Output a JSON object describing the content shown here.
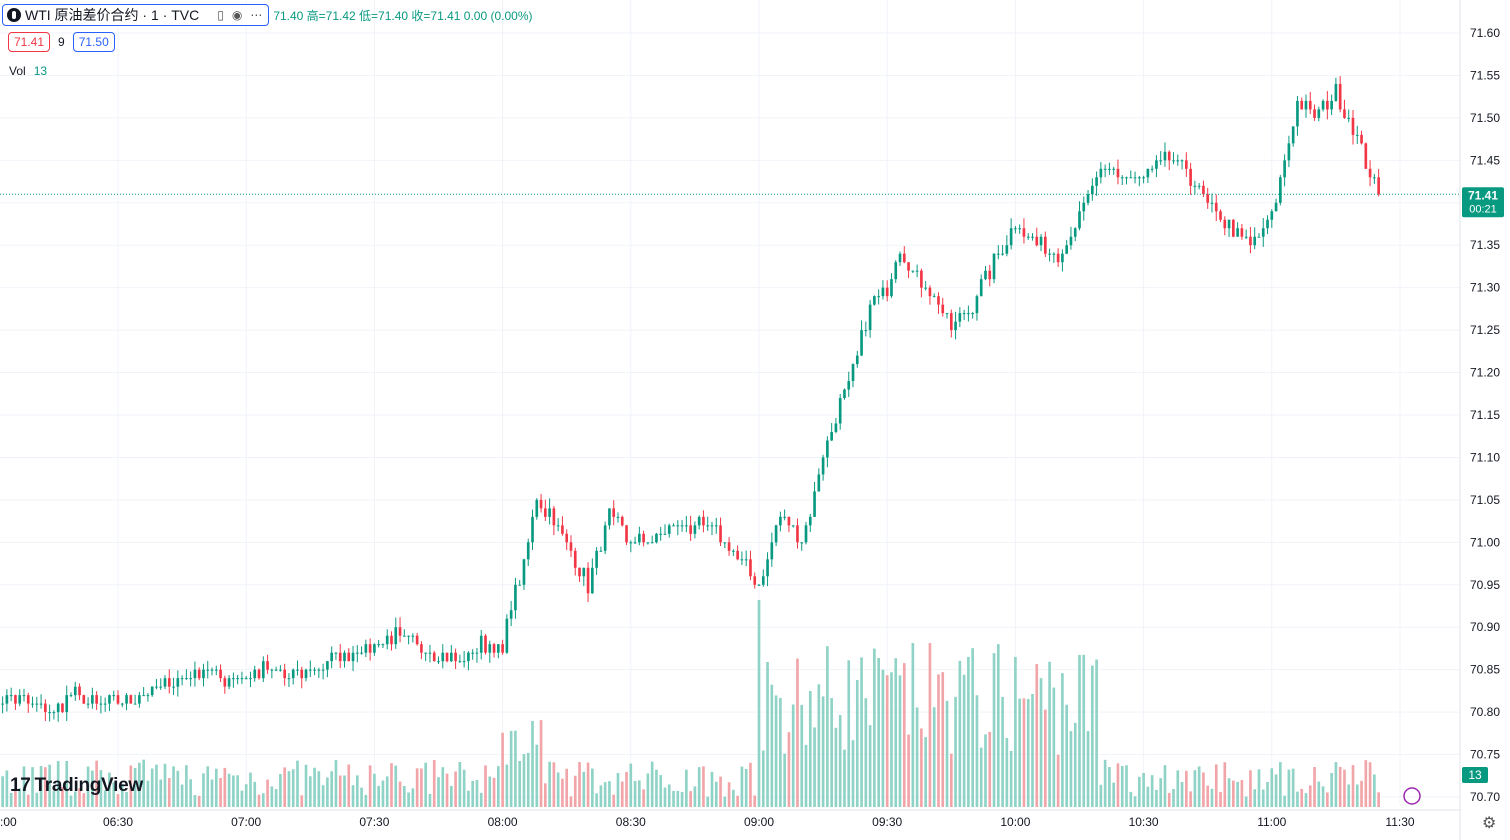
{
  "header": {
    "symbol_title": "WTI 原油差价合约 · 1 · TVC",
    "ohlc_text": "71.40 高=71.42 低=71.40 收=71.41 0.00 (0.00%)",
    "bid": "71.41",
    "spread": "9",
    "ask": "71.50",
    "vol_label": "Vol",
    "vol_value": "13"
  },
  "branding": {
    "logo_text": "TradingView"
  },
  "icons": [
    "eye-icon",
    "more-icon",
    "hide-icon",
    "gear-icon",
    "lightning-icon"
  ],
  "colors": {
    "up": "#089981",
    "down": "#f23645",
    "vol_up": "#8fd3c6",
    "vol_down": "#f2a5a8",
    "grid": "#f0f3fa",
    "last_price_bg": "#089981",
    "accent": "#2962ff"
  },
  "chart_data": {
    "type": "candlestick",
    "symbol": "WTI 原油差价合约",
    "interval": "1",
    "source": "TVC",
    "last_price": "71.41",
    "countdown": "00:21",
    "volume_last": "13",
    "y_ticks": [
      "71.60",
      "71.55",
      "71.50",
      "71.45",
      "71.40",
      "71.35",
      "71.30",
      "71.25",
      "71.20",
      "71.15",
      "71.10",
      "71.05",
      "71.00",
      "70.95",
      "70.90",
      "70.85",
      "70.80",
      "70.75",
      "70.70"
    ],
    "ylim": [
      70.7,
      71.6
    ],
    "x_ticks": [
      ":00",
      "06:30",
      "07:00",
      "07:30",
      "08:00",
      "08:30",
      "09:00",
      "09:30",
      "10:00",
      "10:30",
      "11:00",
      "11:30"
    ],
    "close_path": [
      [
        "06:00",
        70.81
      ],
      [
        "06:05",
        70.82
      ],
      [
        "06:10",
        70.81
      ],
      [
        "06:15",
        70.8
      ],
      [
        "06:20",
        70.82
      ],
      [
        "06:25",
        70.81
      ],
      [
        "06:30",
        70.81
      ],
      [
        "06:35",
        70.82
      ],
      [
        "06:40",
        70.83
      ],
      [
        "06:45",
        70.84
      ],
      [
        "06:50",
        70.85
      ],
      [
        "06:55",
        70.84
      ],
      [
        "07:00",
        70.84
      ],
      [
        "07:05",
        70.85
      ],
      [
        "07:10",
        70.84
      ],
      [
        "07:15",
        70.85
      ],
      [
        "07:20",
        70.86
      ],
      [
        "07:25",
        70.87
      ],
      [
        "07:30",
        70.88
      ],
      [
        "07:35",
        70.89
      ],
      [
        "07:40",
        70.88
      ],
      [
        "07:45",
        70.87
      ],
      [
        "07:50",
        70.86
      ],
      [
        "07:55",
        70.88
      ],
      [
        "08:00",
        70.87
      ],
      [
        "08:02",
        70.93
      ],
      [
        "08:05",
        70.97
      ],
      [
        "08:08",
        71.05
      ],
      [
        "08:12",
        71.03
      ],
      [
        "08:15",
        71.0
      ],
      [
        "08:20",
        70.95
      ],
      [
        "08:25",
        71.03
      ],
      [
        "08:30",
        71.0
      ],
      [
        "08:35",
        71.0
      ],
      [
        "08:40",
        71.02
      ],
      [
        "08:45",
        71.02
      ],
      [
        "08:50",
        71.01
      ],
      [
        "08:55",
        70.98
      ],
      [
        "09:00",
        70.95
      ],
      [
        "09:05",
        71.03
      ],
      [
        "09:10",
        71.0
      ],
      [
        "09:15",
        71.1
      ],
      [
        "09:18",
        71.15
      ],
      [
        "09:22",
        71.2
      ],
      [
        "09:26",
        71.28
      ],
      [
        "09:30",
        71.3
      ],
      [
        "09:33",
        71.35
      ],
      [
        "09:36",
        71.32
      ],
      [
        "09:40",
        71.3
      ],
      [
        "09:45",
        71.25
      ],
      [
        "09:50",
        71.28
      ],
      [
        "09:55",
        71.33
      ],
      [
        "10:00",
        71.38
      ],
      [
        "10:05",
        71.35
      ],
      [
        "10:10",
        71.34
      ],
      [
        "10:15",
        71.38
      ],
      [
        "10:18",
        71.42
      ],
      [
        "10:22",
        71.44
      ],
      [
        "10:25",
        71.43
      ],
      [
        "10:30",
        71.43
      ],
      [
        "10:35",
        71.45
      ],
      [
        "10:40",
        71.44
      ],
      [
        "10:45",
        71.4
      ],
      [
        "10:50",
        71.37
      ],
      [
        "10:55",
        71.35
      ],
      [
        "11:00",
        71.38
      ],
      [
        "11:03",
        71.45
      ],
      [
        "11:06",
        71.52
      ],
      [
        "11:10",
        71.5
      ],
      [
        "11:15",
        71.53
      ],
      [
        "11:18",
        71.5
      ],
      [
        "11:22",
        71.45
      ],
      [
        "11:25",
        71.41
      ]
    ]
  }
}
